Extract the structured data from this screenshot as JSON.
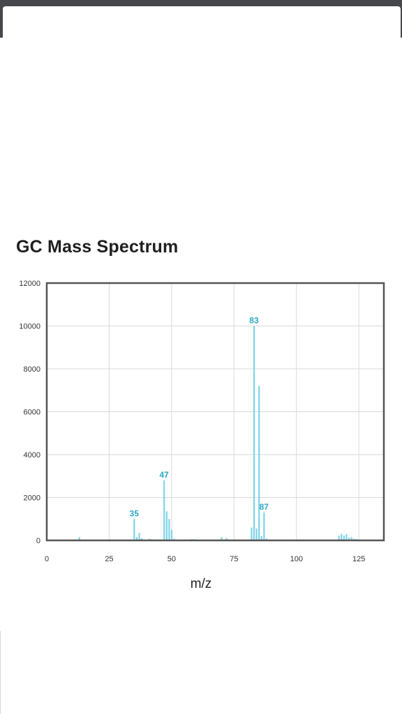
{
  "page": {
    "title": "GC Mass Spectrum"
  },
  "colors": {
    "status_bar": "#45474c",
    "bar": "#7fd3e8",
    "peak_label": "#2ea7c7",
    "frame": "#555555",
    "grid": "#d9d9d9"
  },
  "chart_data": {
    "type": "bar",
    "title": "",
    "xlabel": "m/z",
    "ylabel": "",
    "xlim": [
      0,
      135
    ],
    "ylim": [
      0,
      12000
    ],
    "grid": true,
    "legend": "none",
    "x_ticks": [
      0,
      25,
      50,
      75,
      100,
      125
    ],
    "y_ticks": [
      0,
      2000,
      4000,
      6000,
      8000,
      10000,
      12000
    ],
    "points": [
      {
        "x": 13,
        "y": 150
      },
      {
        "x": 35,
        "y": 1000
      },
      {
        "x": 36,
        "y": 150
      },
      {
        "x": 37,
        "y": 350
      },
      {
        "x": 38,
        "y": 100
      },
      {
        "x": 41,
        "y": 80
      },
      {
        "x": 42,
        "y": 60
      },
      {
        "x": 47,
        "y": 2800
      },
      {
        "x": 48,
        "y": 1350
      },
      {
        "x": 49,
        "y": 1000
      },
      {
        "x": 50,
        "y": 500
      },
      {
        "x": 51,
        "y": 80
      },
      {
        "x": 58,
        "y": 60
      },
      {
        "x": 59,
        "y": 60
      },
      {
        "x": 70,
        "y": 150
      },
      {
        "x": 72,
        "y": 110
      },
      {
        "x": 82,
        "y": 600
      },
      {
        "x": 83,
        "y": 10000
      },
      {
        "x": 84,
        "y": 550
      },
      {
        "x": 85,
        "y": 7200
      },
      {
        "x": 86,
        "y": 200
      },
      {
        "x": 87,
        "y": 1300
      },
      {
        "x": 88,
        "y": 80
      },
      {
        "x": 117,
        "y": 220
      },
      {
        "x": 118,
        "y": 300
      },
      {
        "x": 119,
        "y": 230
      },
      {
        "x": 120,
        "y": 300
      },
      {
        "x": 121,
        "y": 120
      },
      {
        "x": 122,
        "y": 150
      },
      {
        "x": 123,
        "y": 80
      },
      {
        "x": 124,
        "y": 60
      }
    ],
    "labeled_peaks": [
      {
        "x": 35,
        "y": 1000,
        "label": "35"
      },
      {
        "x": 47,
        "y": 2800,
        "label": "47"
      },
      {
        "x": 83,
        "y": 10000,
        "label": "83"
      },
      {
        "x": 87,
        "y": 1300,
        "label": "87"
      }
    ]
  }
}
